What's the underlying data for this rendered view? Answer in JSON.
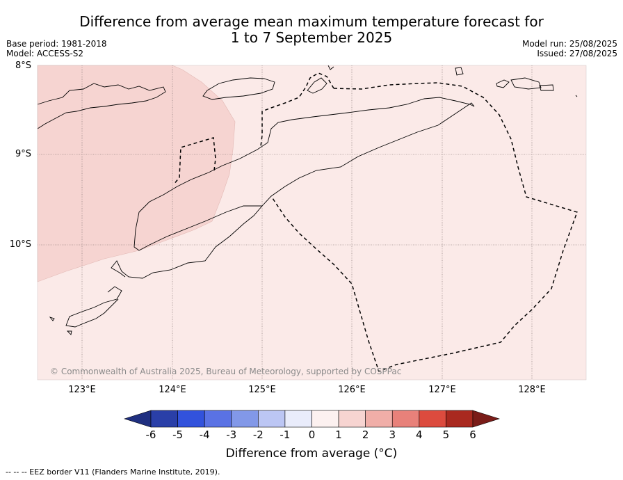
{
  "title_line1": "Difference from average mean maximum temperature forecast for",
  "title_line2": "1 to 7 September 2025",
  "base_period": "Base period: 1981-2018",
  "model": "Model: ACCESS-S2",
  "model_run": "Model run: 25/08/2025",
  "issued": "Issued: 27/08/2025",
  "lat_labels": [
    "8°S",
    "9°S",
    "10°S"
  ],
  "lon_labels": [
    "123°E",
    "124°E",
    "125°E",
    "126°E",
    "127°E",
    "128°E"
  ],
  "copyright": "© Commonwealth of Australia 2025, Bureau of Meteorology, supported by COSPPac",
  "colorbar": {
    "label": "Difference from average (°C)",
    "ticks": [
      "-6",
      "-5",
      "-4",
      "-3",
      "-2",
      "-1",
      "0",
      "1",
      "2",
      "3",
      "4",
      "5",
      "6"
    ],
    "colors": [
      "#2a3fa8",
      "#3252dc",
      "#5a72e4",
      "#8298e8",
      "#bcc6f4",
      "#e9ecfb",
      "#fcf1f0",
      "#f7d4d1",
      "#f0aea8",
      "#e8817a",
      "#dc4b3e",
      "#a9291f"
    ],
    "under_color": "#1f2f80",
    "over_color": "#7a1c18"
  },
  "map": {
    "fill_main": "#fbeae8",
    "fill_warm": "#f6d4d1"
  },
  "footnote": "-- -- -- EEZ border V11 (Flanders Marine Institute, 2019)."
}
